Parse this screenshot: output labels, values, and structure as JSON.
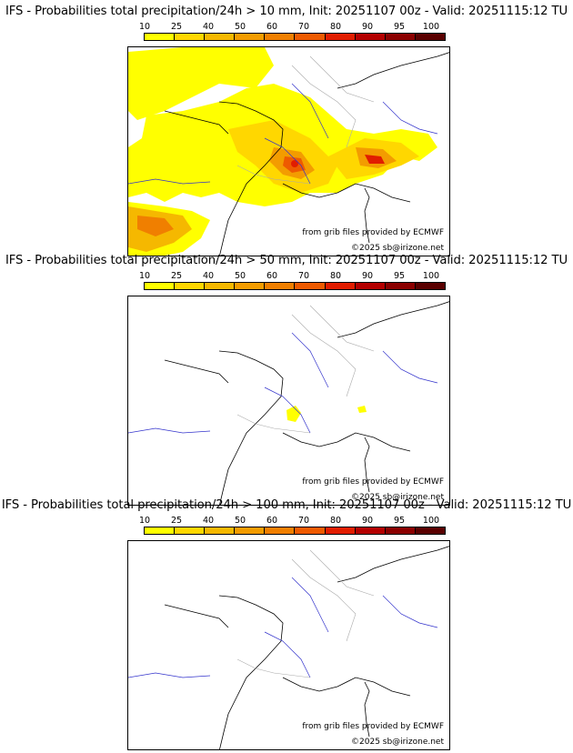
{
  "panels": [
    {
      "title": "IFS - Probabilities total precipitation/24h > 10 mm, Init: 20251107 00z - Valid: 20251115:12 TU",
      "credit_source": "from grib files provided by ECMWF",
      "credit_copy": "©2025 sb@irizone.net"
    },
    {
      "title": "IFS - Probabilities total precipitation/24h > 50 mm, Init: 20251107 00z - Valid: 20251115:12 TU",
      "credit_source": "from grib files provided by ECMWF",
      "credit_copy": "©2025 sb@irizone.net"
    },
    {
      "title": "IFS - Probabilities total precipitation/24h > 100 mm, Init: 20251107 00z - Valid: 20251115:12 TU",
      "credit_source": "from grib files provided by ECMWF",
      "credit_copy": "©2025 sb@irizone.net"
    }
  ],
  "colorbar": {
    "ticks": [
      "10",
      "25",
      "40",
      "50",
      "60",
      "70",
      "80",
      "90",
      "95",
      "100"
    ],
    "colors": [
      "#ffff00",
      "#ffd700",
      "#f5b800",
      "#f39c00",
      "#f07f00",
      "#ee5a00",
      "#e11d00",
      "#b40000",
      "#8b0000",
      "#5a0000"
    ]
  },
  "colors": {
    "coast": "#000000",
    "rivers": "#3333cc",
    "borders": "#aaaaaa"
  }
}
